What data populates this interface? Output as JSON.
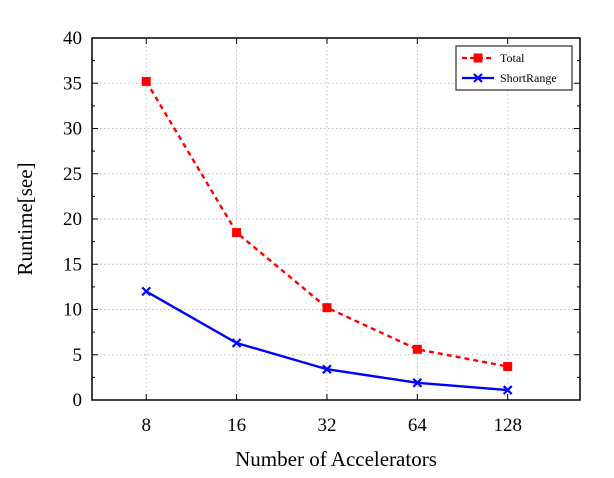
{
  "chart_data": {
    "type": "line",
    "x_scale": "log2",
    "categories": [
      "8",
      "16",
      "32",
      "64",
      "128"
    ],
    "x": [
      8,
      16,
      32,
      64,
      128
    ],
    "series": [
      {
        "name": "Total",
        "values": [
          35.2,
          18.5,
          10.2,
          5.6,
          3.7
        ],
        "color": "#ff0000",
        "line_style": "dashed",
        "marker": "square"
      },
      {
        "name": "ShortRange",
        "values": [
          12.0,
          6.3,
          3.4,
          1.9,
          1.1
        ],
        "color": "#0000ff",
        "line_style": "solid",
        "marker": "x"
      }
    ],
    "title": "",
    "xlabel": "Number of Accelerators",
    "ylabel": "Runtime[see]",
    "ylim": [
      0,
      40
    ],
    "yticks": [
      "0",
      "5",
      "10",
      "15",
      "20",
      "25",
      "30",
      "35",
      "40"
    ],
    "grid": true,
    "legend_position": "top-right"
  }
}
